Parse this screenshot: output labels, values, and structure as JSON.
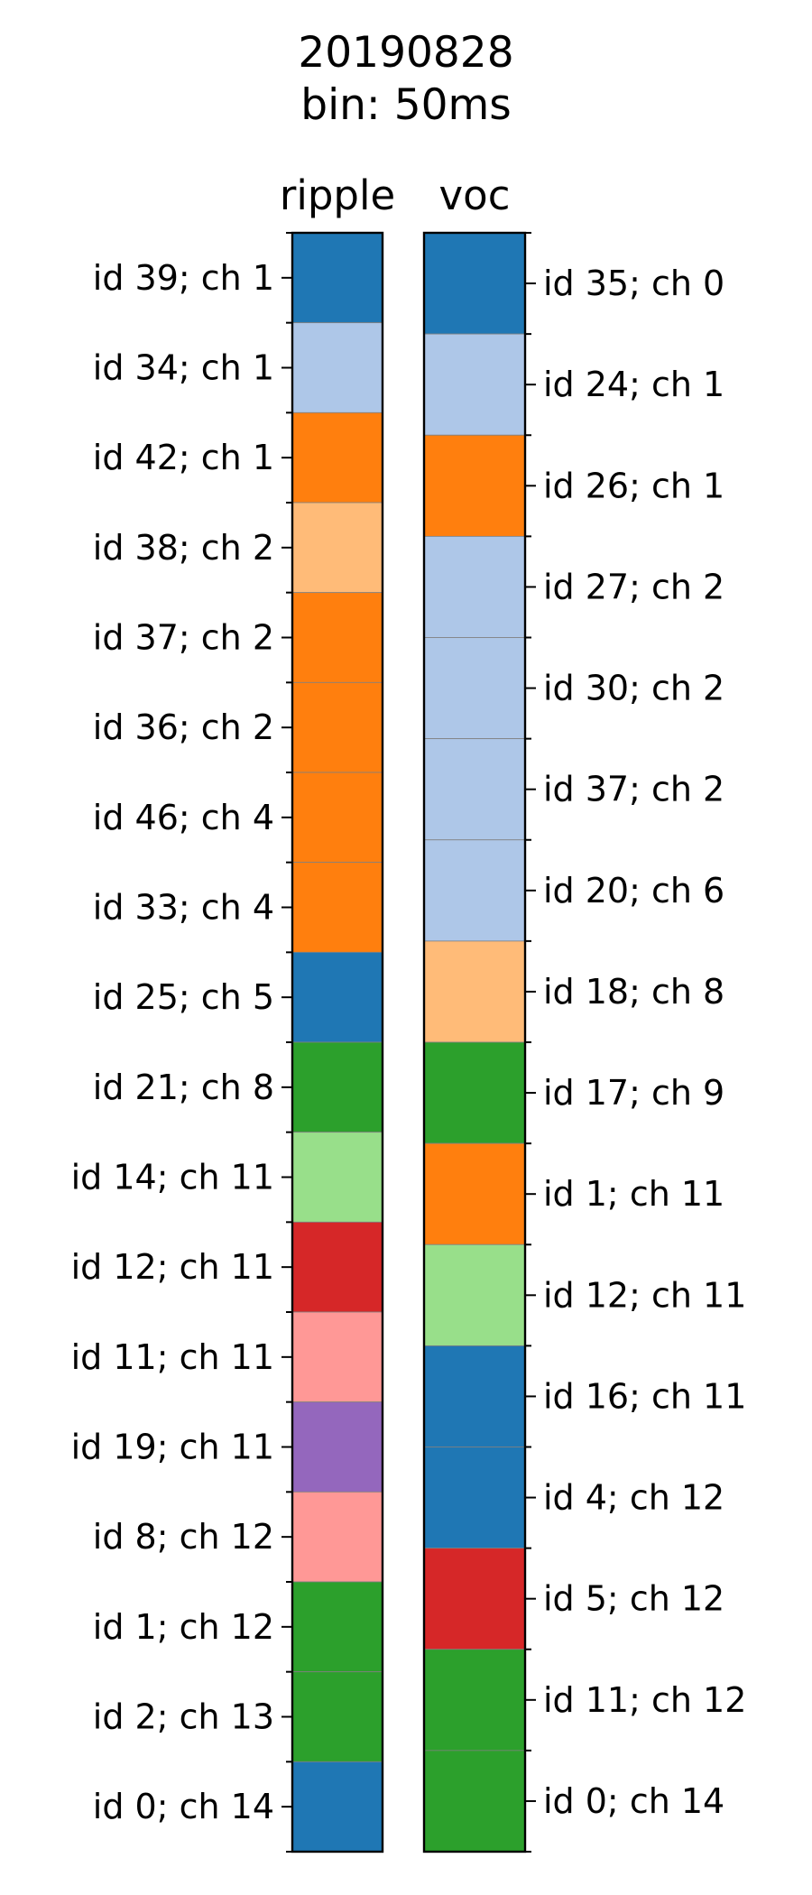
{
  "title": {
    "line1": "20190828",
    "line2": "bin: 50ms"
  },
  "colors": {
    "dark_blue": "#1f77b4",
    "light_blue": "#aec7e8",
    "orange": "#ff7f0e",
    "light_orange": "#ffbb78",
    "green": "#2ca02c",
    "light_green": "#98df8a",
    "red": "#d62728",
    "pink": "#ff9896",
    "purple": "#9467bd"
  },
  "chart_data": {
    "type": "heatmap",
    "panels": [
      {
        "title": "ripple",
        "label_side": "left",
        "units": [
          {
            "label": "id 39; ch 1",
            "color": "#1f77b4"
          },
          {
            "label": "id 34; ch 1",
            "color": "#aec7e8"
          },
          {
            "label": "id 42; ch 1",
            "color": "#ff7f0e"
          },
          {
            "label": "id 38; ch 2",
            "color": "#ffbb78"
          },
          {
            "label": "id 37; ch 2",
            "color": "#ff7f0e"
          },
          {
            "label": "id 36; ch 2",
            "color": "#ff7f0e"
          },
          {
            "label": "id 46; ch 4",
            "color": "#ff7f0e"
          },
          {
            "label": "id 33; ch 4",
            "color": "#ff7f0e"
          },
          {
            "label": "id 25; ch 5",
            "color": "#1f77b4"
          },
          {
            "label": "id 21; ch 8",
            "color": "#2ca02c"
          },
          {
            "label": "id 14; ch 11",
            "color": "#98df8a"
          },
          {
            "label": "id 12; ch 11",
            "color": "#d62728"
          },
          {
            "label": "id 11; ch 11",
            "color": "#ff9896"
          },
          {
            "label": "id 19; ch 11",
            "color": "#9467bd"
          },
          {
            "label": "id 8; ch 12",
            "color": "#ff9896"
          },
          {
            "label": "id 1; ch 12",
            "color": "#2ca02c"
          },
          {
            "label": "id 2; ch 13",
            "color": "#2ca02c"
          },
          {
            "label": "id 0; ch 14",
            "color": "#1f77b4"
          }
        ]
      },
      {
        "title": "voc",
        "label_side": "right",
        "units": [
          {
            "label": "id 35; ch 0",
            "color": "#1f77b4"
          },
          {
            "label": "id 24; ch 1",
            "color": "#aec7e8"
          },
          {
            "label": "id 26; ch 1",
            "color": "#ff7f0e"
          },
          {
            "label": "id 27; ch 2",
            "color": "#aec7e8"
          },
          {
            "label": "id 30; ch 2",
            "color": "#aec7e8"
          },
          {
            "label": "id 37; ch 2",
            "color": "#aec7e8"
          },
          {
            "label": "id 20; ch 6",
            "color": "#aec7e8"
          },
          {
            "label": "id 18; ch 8",
            "color": "#ffbb78"
          },
          {
            "label": "id 17; ch 9",
            "color": "#2ca02c"
          },
          {
            "label": "id 1; ch 11",
            "color": "#ff7f0e"
          },
          {
            "label": "id 12; ch 11",
            "color": "#98df8a"
          },
          {
            "label": "id 16; ch 11",
            "color": "#1f77b4"
          },
          {
            "label": "id 4; ch 12",
            "color": "#1f77b4"
          },
          {
            "label": "id 5; ch 12",
            "color": "#d62728"
          },
          {
            "label": "id 11; ch 12",
            "color": "#2ca02c"
          },
          {
            "label": "id 0; ch 14",
            "color": "#2ca02c"
          }
        ]
      }
    ]
  }
}
